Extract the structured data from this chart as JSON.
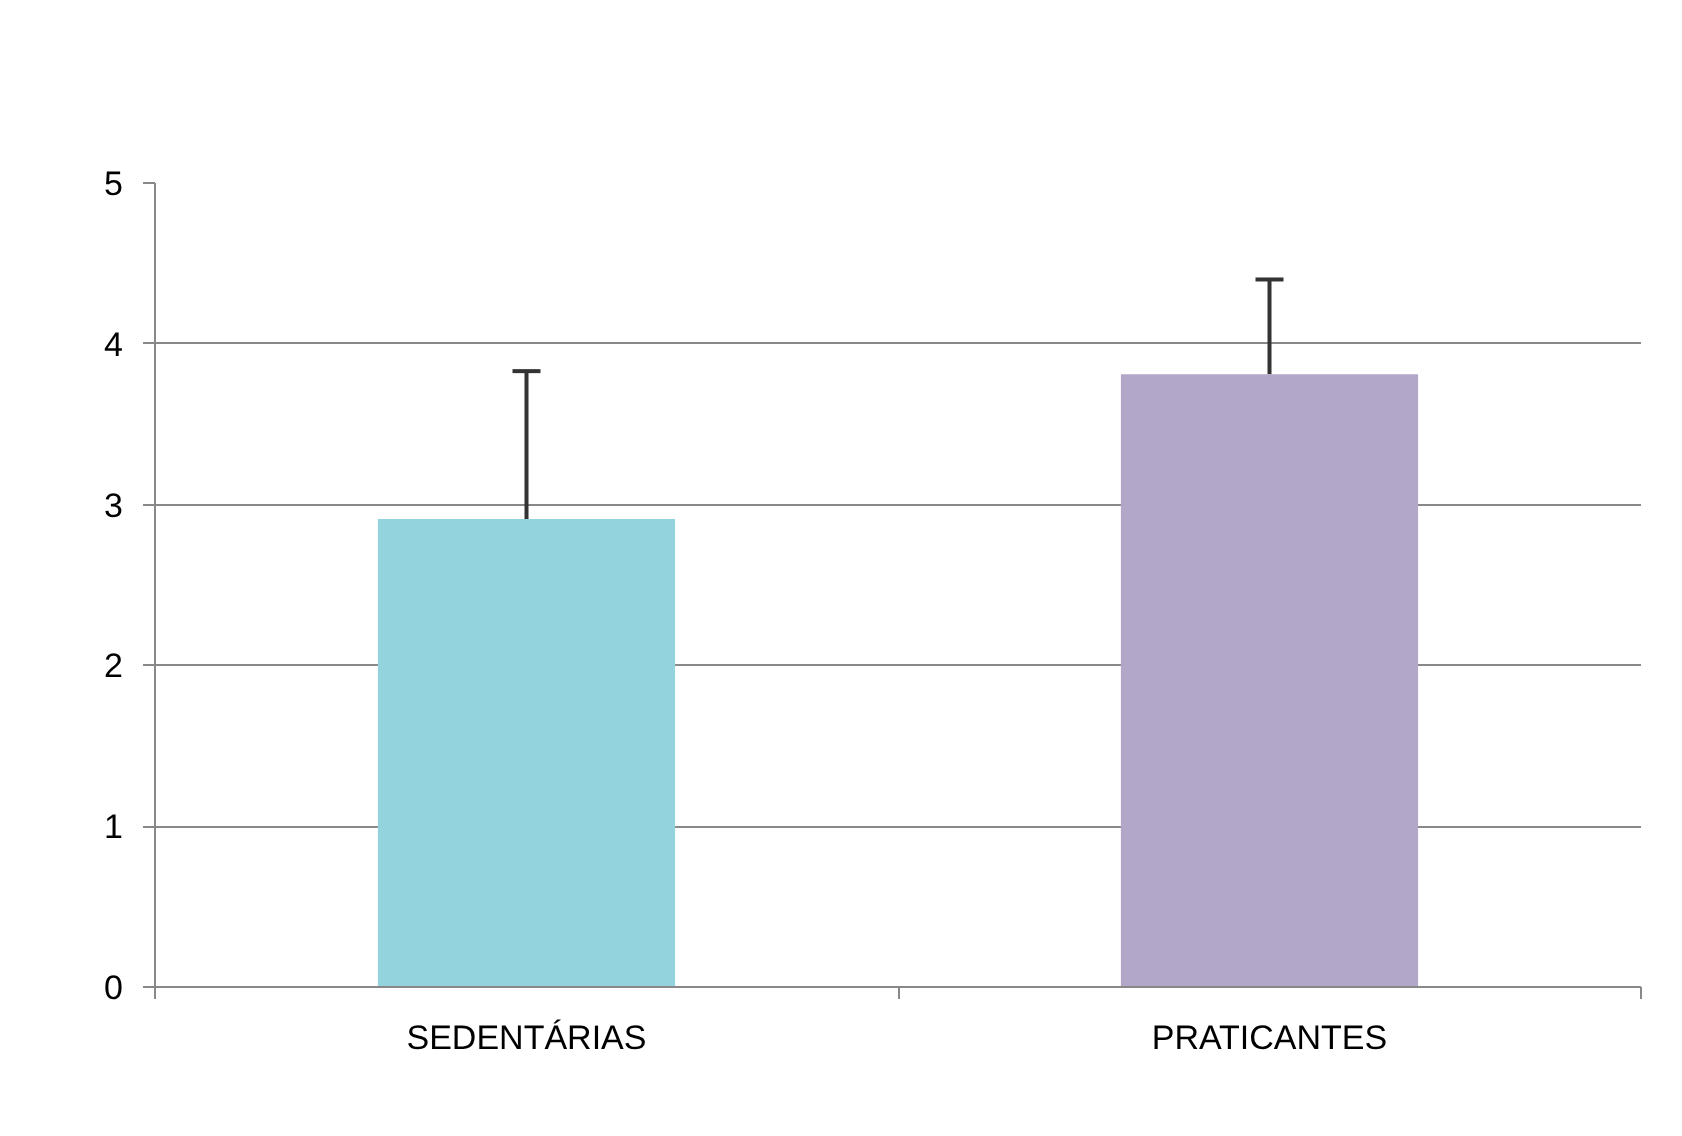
{
  "chart_data": {
    "type": "bar",
    "categories": [
      "SEDENTÁRIAS",
      "PRATICANTES"
    ],
    "values": [
      2.91,
      3.81
    ],
    "colors": [
      "#92d3de",
      "#b3a7c9"
    ],
    "errors": [
      [
        2.91,
        3.83
      ],
      [
        3.81,
        4.4
      ]
    ],
    "ylim": [
      0,
      5
    ],
    "yticks": [
      0,
      1,
      2,
      3,
      4,
      5
    ],
    "grid": "y"
  }
}
